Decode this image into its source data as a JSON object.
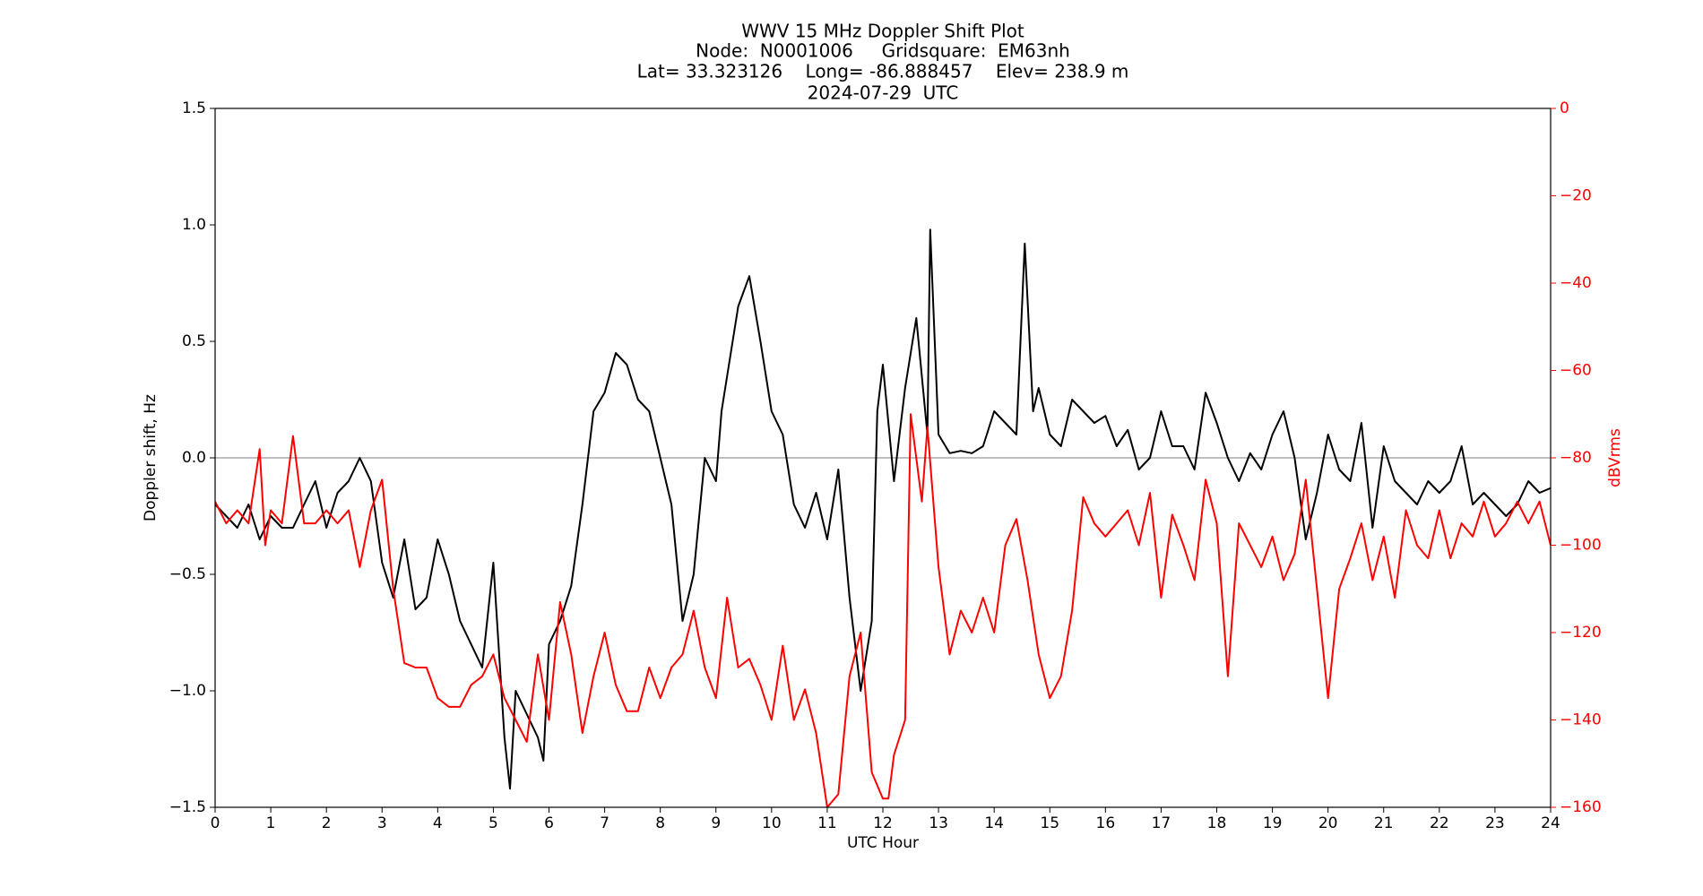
{
  "chart_data": {
    "type": "line",
    "title": "WWV 15 MHz Doppler Shift Plot",
    "subtitle": [
      "Node:  N0001006     Gridsquare:  EM63nh",
      "Lat= 33.323126    Long= -86.888457    Elev= 238.9 m",
      "2024-07-29  UTC"
    ],
    "xlabel": "UTC Hour",
    "ylabel": "Doppler shift, Hz",
    "y2label": "dBVrms",
    "y2color": "#ff0000",
    "reference_line": 0,
    "xlim": [
      0,
      24
    ],
    "xticks": [
      0,
      1,
      2,
      3,
      4,
      5,
      6,
      7,
      8,
      9,
      10,
      11,
      12,
      13,
      14,
      15,
      16,
      17,
      18,
      19,
      20,
      21,
      22,
      23,
      24
    ],
    "ylim": [
      -1.5,
      1.5
    ],
    "yticks": [
      {
        "value": -1.5,
        "label": "−1.5"
      },
      {
        "value": -1.0,
        "label": "−1.0"
      },
      {
        "value": -0.5,
        "label": "−0.5"
      },
      {
        "value": 0,
        "label": "0.0"
      },
      0.5,
      {
        "value": 1,
        "label": "1.0"
      },
      1.5
    ],
    "y2lim": [
      -160,
      0
    ],
    "y2ticks": [
      {
        "value": -160,
        "label": "−160"
      },
      {
        "value": -140,
        "label": "−140"
      },
      {
        "value": -120,
        "label": "−120"
      },
      {
        "value": -100,
        "label": "−100"
      },
      {
        "value": -80,
        "label": "−80"
      },
      {
        "value": -60,
        "label": "−60"
      },
      {
        "value": -40,
        "label": "−40"
      },
      {
        "value": -20,
        "label": "−20"
      },
      0
    ],
    "series": [
      {
        "color": "#000000",
        "axis": "y",
        "x": [
          0,
          0.2,
          0.4,
          0.6,
          0.8,
          1.0,
          1.2,
          1.4,
          1.6,
          1.8,
          2.0,
          2.2,
          2.4,
          2.6,
          2.8,
          3.0,
          3.2,
          3.4,
          3.6,
          3.8,
          4.0,
          4.2,
          4.4,
          4.6,
          4.8,
          5.0,
          5.2,
          5.3,
          5.4,
          5.6,
          5.8,
          5.9,
          6.0,
          6.2,
          6.4,
          6.6,
          6.8,
          7.0,
          7.2,
          7.4,
          7.6,
          7.8,
          8.0,
          8.2,
          8.4,
          8.6,
          8.8,
          9.0,
          9.1,
          9.3,
          9.4,
          9.6,
          9.8,
          10.0,
          10.2,
          10.4,
          10.6,
          10.8,
          11.0,
          11.2,
          11.4,
          11.6,
          11.8,
          11.9,
          12.0,
          12.2,
          12.4,
          12.6,
          12.8,
          12.85,
          13.0,
          13.2,
          13.4,
          13.6,
          13.8,
          14.0,
          14.2,
          14.4,
          14.55,
          14.7,
          14.8,
          15.0,
          15.2,
          15.4,
          15.6,
          15.8,
          16.0,
          16.2,
          16.4,
          16.6,
          16.8,
          17.0,
          17.2,
          17.4,
          17.6,
          17.8,
          18.0,
          18.2,
          18.4,
          18.6,
          18.8,
          19.0,
          19.2,
          19.4,
          19.6,
          19.8,
          20.0,
          20.2,
          20.4,
          20.6,
          20.8,
          21.0,
          21.2,
          21.4,
          21.6,
          21.8,
          22.0,
          22.2,
          22.4,
          22.6,
          22.8,
          23.0,
          23.2,
          23.4,
          23.6,
          23.8,
          24.0
        ],
        "values": [
          -0.2,
          -0.25,
          -0.3,
          -0.2,
          -0.35,
          -0.25,
          -0.3,
          -0.3,
          -0.2,
          -0.1,
          -0.3,
          -0.15,
          -0.1,
          0.0,
          -0.1,
          -0.45,
          -0.6,
          -0.35,
          -0.65,
          -0.6,
          -0.35,
          -0.5,
          -0.7,
          -0.8,
          -0.9,
          -0.45,
          -1.2,
          -1.42,
          -1.0,
          -1.1,
          -1.2,
          -1.3,
          -0.8,
          -0.7,
          -0.55,
          -0.2,
          0.2,
          0.28,
          0.45,
          0.4,
          0.25,
          0.2,
          0.0,
          -0.2,
          -0.7,
          -0.5,
          0.0,
          -0.1,
          0.2,
          0.5,
          0.65,
          0.78,
          0.5,
          0.2,
          0.1,
          -0.2,
          -0.3,
          -0.15,
          -0.35,
          -0.05,
          -0.6,
          -1.0,
          -0.7,
          0.2,
          0.4,
          -0.1,
          0.3,
          0.6,
          0.1,
          0.98,
          0.1,
          0.02,
          0.03,
          0.02,
          0.05,
          0.2,
          0.15,
          0.1,
          0.92,
          0.2,
          0.3,
          0.1,
          0.05,
          0.25,
          0.2,
          0.15,
          0.18,
          0.05,
          0.12,
          -0.05,
          0.0,
          0.2,
          0.05,
          0.05,
          -0.05,
          0.28,
          0.15,
          0.0,
          -0.1,
          0.02,
          -0.05,
          0.1,
          0.2,
          0.0,
          -0.35,
          -0.15,
          0.1,
          -0.05,
          -0.1,
          0.15,
          -0.3,
          0.05,
          -0.1,
          -0.15,
          -0.2,
          -0.1,
          -0.15,
          -0.1,
          0.05,
          -0.2,
          -0.15,
          -0.2,
          -0.25,
          -0.2,
          -0.1,
          -0.15,
          -0.13
        ]
      },
      {
        "color": "#ff0000",
        "axis": "y2",
        "x": [
          0,
          0.2,
          0.4,
          0.6,
          0.8,
          0.9,
          1.0,
          1.2,
          1.4,
          1.6,
          1.8,
          2.0,
          2.2,
          2.4,
          2.6,
          2.8,
          3.0,
          3.2,
          3.4,
          3.6,
          3.8,
          4.0,
          4.2,
          4.4,
          4.6,
          4.8,
          5.0,
          5.2,
          5.4,
          5.6,
          5.8,
          6.0,
          6.2,
          6.4,
          6.6,
          6.8,
          7.0,
          7.2,
          7.4,
          7.6,
          7.8,
          8.0,
          8.2,
          8.4,
          8.6,
          8.8,
          9.0,
          9.2,
          9.4,
          9.6,
          9.8,
          10.0,
          10.2,
          10.4,
          10.6,
          10.8,
          11.0,
          11.2,
          11.4,
          11.6,
          11.8,
          12.0,
          12.1,
          12.2,
          12.4,
          12.5,
          12.7,
          12.8,
          13.0,
          13.2,
          13.4,
          13.6,
          13.8,
          14.0,
          14.2,
          14.4,
          14.6,
          14.8,
          15.0,
          15.2,
          15.4,
          15.6,
          15.8,
          16.0,
          16.2,
          16.4,
          16.6,
          16.8,
          17.0,
          17.2,
          17.4,
          17.6,
          17.8,
          18.0,
          18.2,
          18.4,
          18.6,
          18.8,
          19.0,
          19.2,
          19.4,
          19.6,
          19.8,
          20.0,
          20.2,
          20.4,
          20.6,
          20.8,
          21.0,
          21.2,
          21.4,
          21.6,
          21.8,
          22.0,
          22.2,
          22.4,
          22.6,
          22.8,
          23.0,
          23.2,
          23.4,
          23.6,
          23.8,
          24.0
        ],
        "values": [
          -90,
          -95,
          -92,
          -95,
          -78,
          -100,
          -92,
          -95,
          -75,
          -95,
          -95,
          -92,
          -95,
          -92,
          -105,
          -92,
          -85,
          -110,
          -127,
          -128,
          -128,
          -135,
          -137,
          -137,
          -132,
          -130,
          -125,
          -135,
          -140,
          -145,
          -125,
          -140,
          -113,
          -125,
          -143,
          -130,
          -120,
          -132,
          -138,
          -138,
          -128,
          -135,
          -128,
          -125,
          -115,
          -128,
          -135,
          -112,
          -128,
          -126,
          -132,
          -140,
          -123,
          -140,
          -133,
          -143,
          -160,
          -157,
          -130,
          -120,
          -152,
          -158,
          -158,
          -148,
          -140,
          -70,
          -90,
          -73,
          -105,
          -125,
          -115,
          -120,
          -112,
          -120,
          -100,
          -94,
          -108,
          -125,
          -135,
          -130,
          -115,
          -89,
          -95,
          -98,
          -95,
          -92,
          -100,
          -88,
          -112,
          -93,
          -100,
          -108,
          -85,
          -95,
          -130,
          -95,
          -100,
          -105,
          -98,
          -108,
          -102,
          -85,
          -110,
          -135,
          -110,
          -103,
          -95,
          -108,
          -98,
          -112,
          -92,
          -100,
          -103,
          -92,
          -103,
          -95,
          -98,
          -90,
          -98,
          -95,
          -90,
          -95,
          -90,
          -100
        ]
      }
    ]
  }
}
